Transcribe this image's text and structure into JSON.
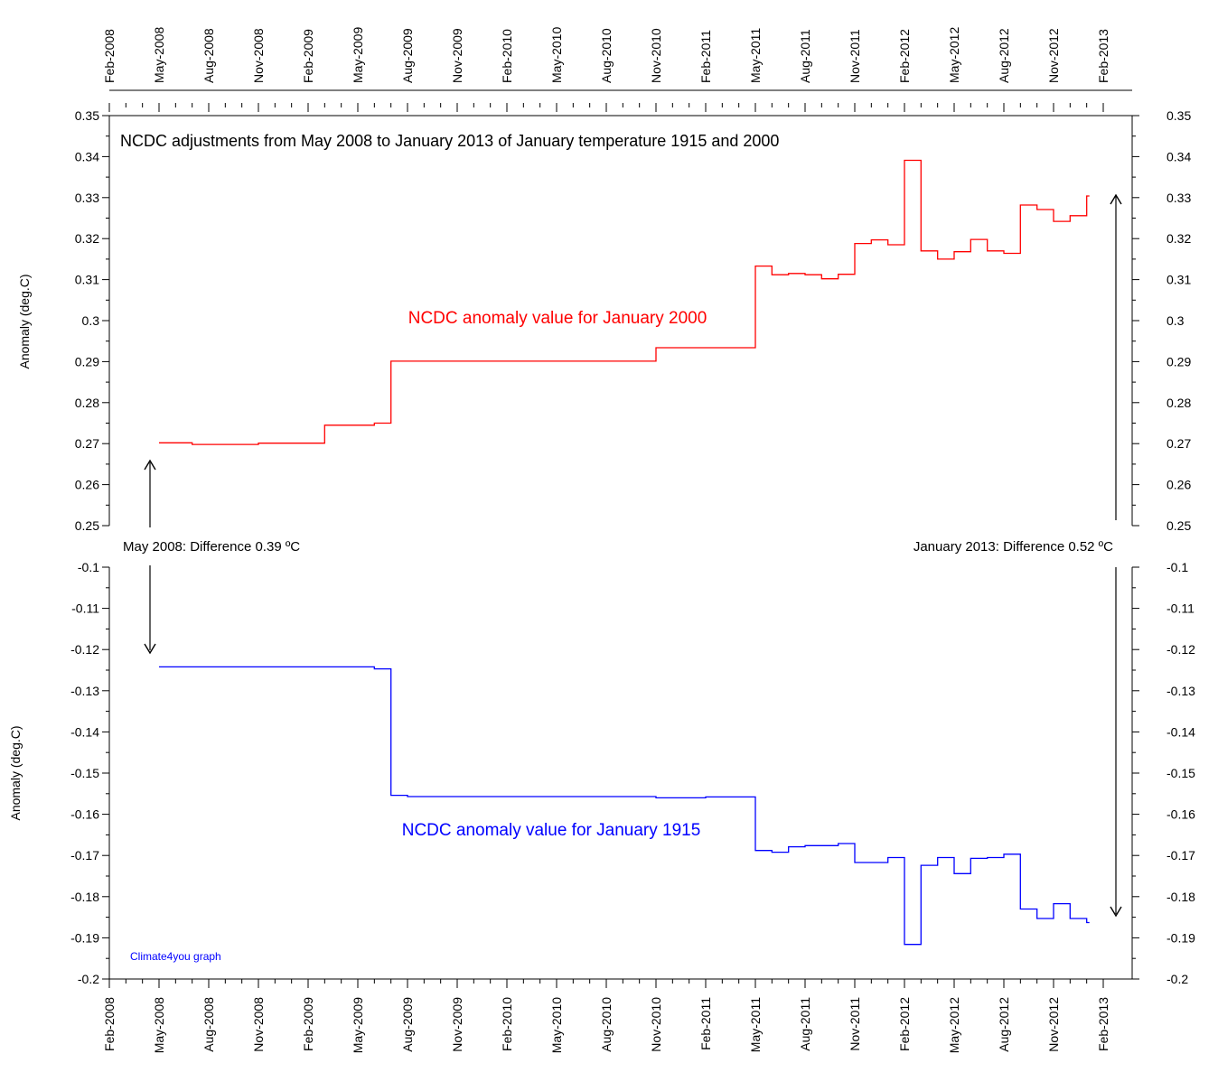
{
  "chart_data": [
    {
      "type": "line",
      "panel": "top",
      "title": "NCDC adjustments from May 2008 to January 2013 of January temperature 1915 and 2000",
      "ylabel": "Anomaly (deg.C)",
      "ylim": [
        0.25,
        0.35
      ],
      "y_ticks": [
        "0.25",
        "0.26",
        "0.27",
        "0.28",
        "0.29",
        "0.3",
        "0.31",
        "0.32",
        "0.33",
        "0.34",
        "0.35"
      ],
      "series": [
        {
          "name": "NCDC anomaly value for January 2000",
          "color": "#ff0000",
          "x": [
            "2008-05",
            "2008-06",
            "2008-07",
            "2008-08",
            "2008-09",
            "2008-10",
            "2008-11",
            "2008-12",
            "2009-01",
            "2009-02",
            "2009-03",
            "2009-04",
            "2009-05",
            "2009-06",
            "2009-07",
            "2009-08",
            "2009-09",
            "2009-10",
            "2009-11",
            "2009-12",
            "2010-01",
            "2010-02",
            "2010-03",
            "2010-04",
            "2010-05",
            "2010-06",
            "2010-07",
            "2010-08",
            "2010-09",
            "2010-10",
            "2010-11",
            "2010-12",
            "2011-01",
            "2011-02",
            "2011-03",
            "2011-04",
            "2011-05",
            "2011-06",
            "2011-07",
            "2011-08",
            "2011-09",
            "2011-10",
            "2011-11",
            "2011-12",
            "2012-01",
            "2012-02",
            "2012-03",
            "2012-04",
            "2012-05",
            "2012-06",
            "2012-07",
            "2012-08",
            "2012-09",
            "2012-10",
            "2012-11",
            "2012-12",
            "2013-01"
          ],
          "y": [
            0.2702,
            0.2702,
            0.2698,
            0.2698,
            0.2698,
            0.2698,
            0.2701,
            0.2701,
            0.2701,
            0.2701,
            0.2745,
            0.2745,
            0.2745,
            0.275,
            0.2901,
            0.2901,
            0.2901,
            0.2901,
            0.2901,
            0.2901,
            0.2901,
            0.2901,
            0.2901,
            0.2901,
            0.2901,
            0.2901,
            0.2901,
            0.2901,
            0.2901,
            0.2901,
            0.2934,
            0.2934,
            0.2934,
            0.2934,
            0.2934,
            0.2934,
            0.3133,
            0.3112,
            0.3115,
            0.3112,
            0.3102,
            0.3113,
            0.3188,
            0.3197,
            0.3185,
            0.3391,
            0.317,
            0.315,
            0.3168,
            0.3198,
            0.317,
            0.3164,
            0.3282,
            0.3271,
            0.3242,
            0.3256,
            0.3304
          ]
        }
      ],
      "annotations": [
        "NCDC anomaly value for January 2000"
      ]
    },
    {
      "type": "line",
      "panel": "bottom",
      "ylabel": "Anomaly (deg.C)",
      "ylim": [
        -0.2,
        -0.1
      ],
      "y_ticks": [
        "-0.2",
        "-0.19",
        "-0.18",
        "-0.17",
        "-0.16",
        "-0.15",
        "-0.14",
        "-0.13",
        "-0.12",
        "-0.11",
        "-0.1"
      ],
      "series": [
        {
          "name": "NCDC anomaly value for January 1915",
          "color": "#0000ff",
          "x": [
            "2008-05",
            "2008-06",
            "2008-07",
            "2008-08",
            "2008-09",
            "2008-10",
            "2008-11",
            "2008-12",
            "2009-01",
            "2009-02",
            "2009-03",
            "2009-04",
            "2009-05",
            "2009-06",
            "2009-07",
            "2009-08",
            "2009-09",
            "2009-10",
            "2009-11",
            "2009-12",
            "2010-01",
            "2010-02",
            "2010-03",
            "2010-04",
            "2010-05",
            "2010-06",
            "2010-07",
            "2010-08",
            "2010-09",
            "2010-10",
            "2010-11",
            "2010-12",
            "2011-01",
            "2011-02",
            "2011-03",
            "2011-04",
            "2011-05",
            "2011-06",
            "2011-07",
            "2011-08",
            "2011-09",
            "2011-10",
            "2011-11",
            "2011-12",
            "2012-01",
            "2012-02",
            "2012-03",
            "2012-04",
            "2012-05",
            "2012-06",
            "2012-07",
            "2012-08",
            "2012-09",
            "2012-10",
            "2012-11",
            "2012-12",
            "2013-01"
          ],
          "y": [
            -0.1242,
            -0.1242,
            -0.1242,
            -0.1242,
            -0.1242,
            -0.1242,
            -0.1242,
            -0.1242,
            -0.1242,
            -0.1242,
            -0.1242,
            -0.1242,
            -0.1242,
            -0.1247,
            -0.1554,
            -0.1557,
            -0.1557,
            -0.1557,
            -0.1557,
            -0.1557,
            -0.1557,
            -0.1557,
            -0.1557,
            -0.1557,
            -0.1557,
            -0.1557,
            -0.1557,
            -0.1557,
            -0.1557,
            -0.1557,
            -0.156,
            -0.156,
            -0.156,
            -0.1558,
            -0.1558,
            -0.1558,
            -0.1688,
            -0.1692,
            -0.1679,
            -0.1676,
            -0.1676,
            -0.1671,
            -0.1717,
            -0.1717,
            -0.1705,
            -0.1916,
            -0.1724,
            -0.1705,
            -0.1744,
            -0.1707,
            -0.1705,
            -0.1697,
            -0.183,
            -0.1853,
            -0.1817,
            -0.1853,
            -0.1863
          ]
        }
      ],
      "annotations": [
        "NCDC anomaly value for January 1915",
        "Climate4you graph"
      ]
    }
  ],
  "x_axis": {
    "ticks": [
      "2008-02",
      "2008-05",
      "2008-08",
      "2008-11",
      "2009-02",
      "2009-05",
      "2009-08",
      "2009-11",
      "2010-02",
      "2010-05",
      "2010-08",
      "2010-11",
      "2011-02",
      "2011-05",
      "2011-08",
      "2011-11",
      "2012-02",
      "2012-05",
      "2012-08",
      "2012-11",
      "2013-02"
    ],
    "tick_labels": [
      "Feb-2008",
      "May-2008",
      "Aug-2008",
      "Nov-2008",
      "Feb-2009",
      "May-2009",
      "Aug-2009",
      "Nov-2009",
      "Feb-2010",
      "May-2010",
      "Aug-2010",
      "Nov-2010",
      "Feb-2011",
      "May-2011",
      "Aug-2011",
      "Nov-2011",
      "Feb-2012",
      "May-2012",
      "Aug-2012",
      "Nov-2012",
      "Feb-2013"
    ]
  },
  "difference_labels": {
    "left": "May 2008: Difference 0.39 ºC",
    "right": "January 2013: Difference 0.52 ºC"
  },
  "credit": "Climate4you graph",
  "colors": {
    "axis": "#000000",
    "top_series": "#ff0000",
    "bottom_series": "#0000ff",
    "credit": "#0000ff"
  }
}
